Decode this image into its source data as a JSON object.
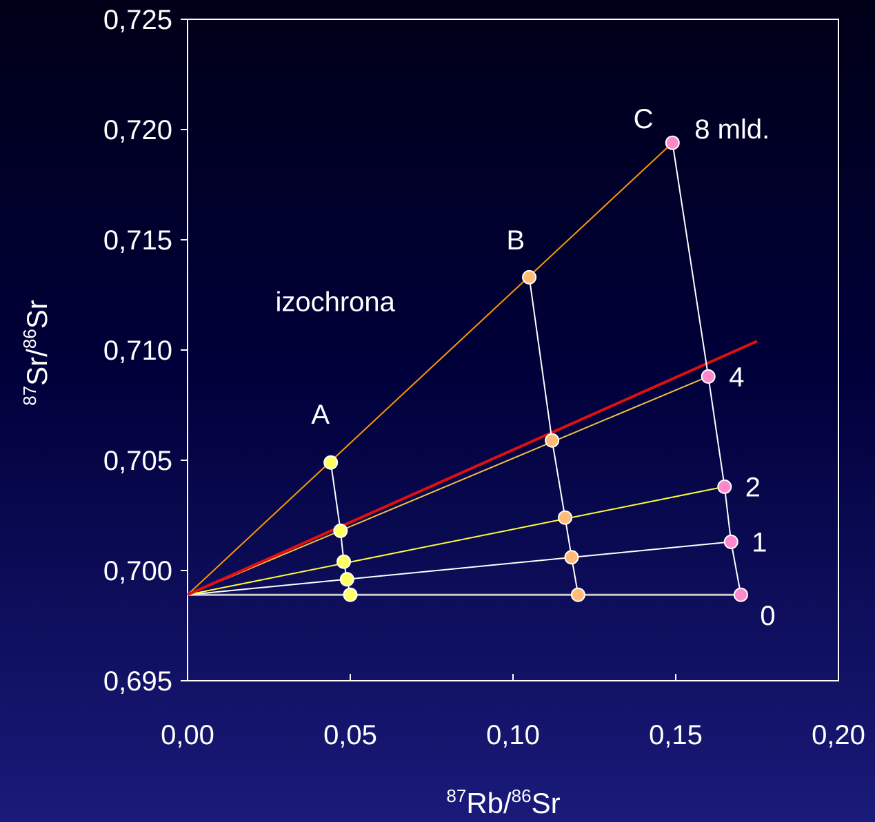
{
  "chart_data": {
    "type": "scatter",
    "title": "",
    "xlabel": {
      "sup1": "87",
      "base1": "Rb/",
      "sup2": "86",
      "base2": "Sr"
    },
    "ylabel": {
      "sup1": "87",
      "base1": "Sr/",
      "sup2": "86",
      "base2": "Sr"
    },
    "xlim": [
      0,
      0.2
    ],
    "ylim": [
      0.695,
      0.725
    ],
    "x_ticks": [
      0,
      0.05,
      0.1,
      0.15,
      0.2
    ],
    "x_tick_labels": [
      "0,00",
      "0,05",
      "0,10",
      "0,15",
      "0,20"
    ],
    "y_ticks": [
      0.695,
      0.7,
      0.705,
      0.71,
      0.715,
      0.72,
      0.725
    ],
    "y_tick_labels": [
      "0,695",
      "0,700",
      "0,705",
      "0,710",
      "0,715",
      "0,720",
      "0,725"
    ],
    "grid": false,
    "origin": [
      0,
      0.6989
    ],
    "reference_line": {
      "name": "izochrona",
      "x": [
        0,
        0.175
      ],
      "y": [
        0.6989,
        0.7104
      ],
      "color": "#e01010"
    },
    "isochrons": [
      {
        "label": "0",
        "color": "#c8c8c8",
        "x": [
          0,
          0.17
        ],
        "y": [
          0.6989,
          0.6989
        ]
      },
      {
        "label": "1",
        "color": "#ffffff",
        "x": [
          0,
          0.167
        ],
        "y": [
          0.6989,
          0.7013
        ]
      },
      {
        "label": "2",
        "color": "#ffff33",
        "x": [
          0,
          0.165
        ],
        "y": [
          0.6989,
          0.7038
        ]
      },
      {
        "label": "4",
        "color": "#f0c040",
        "x": [
          0,
          0.16
        ],
        "y": [
          0.6989,
          0.7088
        ]
      },
      {
        "label": "8 mld.",
        "color": "#ff9900",
        "x": [
          0,
          0.149
        ],
        "y": [
          0.6989,
          0.7194
        ]
      }
    ],
    "series": [
      {
        "name": "A",
        "color": "#ffff66",
        "x": [
          0.05,
          0.049,
          0.048,
          0.047,
          0.044
        ],
        "y": [
          0.6989,
          0.6996,
          0.7004,
          0.7018,
          0.7049
        ]
      },
      {
        "name": "B",
        "color": "#ffbb77",
        "x": [
          0.12,
          0.118,
          0.116,
          0.112,
          0.105
        ],
        "y": [
          0.6989,
          0.7006,
          0.7024,
          0.7059,
          0.7133
        ]
      },
      {
        "name": "C",
        "color": "#ff88cc",
        "x": [
          0.17,
          0.167,
          0.165,
          0.16,
          0.149
        ],
        "y": [
          0.6989,
          0.7013,
          0.7038,
          0.7088,
          0.7194
        ]
      }
    ],
    "annotations": [
      {
        "text": "A",
        "x": 0.038,
        "y": 0.7071
      },
      {
        "text": "B",
        "x": 0.098,
        "y": 0.715
      },
      {
        "text": "C",
        "x": 0.137,
        "y": 0.7205
      },
      {
        "text": "izochrona",
        "x": 0.027,
        "y": 0.7122
      }
    ]
  }
}
